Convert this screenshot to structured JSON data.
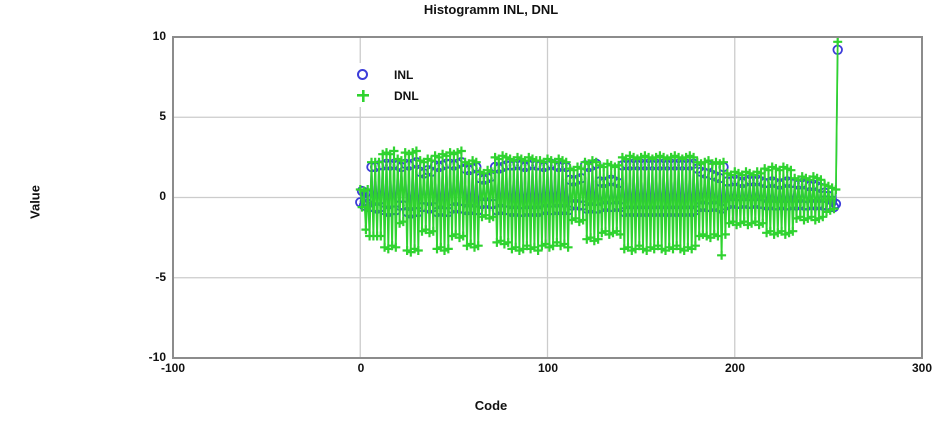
{
  "title": "Histogramm INL, DNL",
  "axes": {
    "x_label": "Code",
    "y_label": "Value"
  },
  "legend": {
    "items": [
      {
        "label": "INL",
        "marker_icon": "circle",
        "color": "#3c3cd9"
      },
      {
        "label": "DNL",
        "marker_icon": "plus",
        "color": "#2fd32f"
      }
    ]
  },
  "colors": {
    "inl": "#3c3cd9",
    "dnl": "#2fd32f",
    "grid": "#cccccc",
    "border": "#8c8c8c",
    "text": "#111111",
    "background": "#ffffff"
  },
  "chart_data": {
    "type": "scatter",
    "title": "Histogramm INL, DNL",
    "xlabel": "Code",
    "ylabel": "Value",
    "xlim": [
      -100,
      300
    ],
    "ylim": [
      -10,
      10
    ],
    "x_ticks": [
      "-100",
      "0",
      "100",
      "200",
      "300"
    ],
    "y_ticks": [
      "10",
      "5",
      "0",
      "-5",
      "-10"
    ],
    "grid_x": [
      0,
      100,
      200
    ],
    "grid_y": [
      5,
      0,
      -5
    ],
    "grid": true,
    "legend_position": "top-left-inside",
    "x": [
      0,
      1,
      2,
      3,
      4,
      5,
      6,
      7,
      8,
      9,
      10,
      11,
      12,
      13,
      14,
      15,
      16,
      17,
      18,
      19,
      20,
      21,
      22,
      23,
      24,
      25,
      26,
      27,
      28,
      29,
      30,
      31,
      32,
      33,
      34,
      35,
      36,
      37,
      38,
      39,
      40,
      41,
      42,
      43,
      44,
      45,
      46,
      47,
      48,
      49,
      50,
      51,
      52,
      53,
      54,
      55,
      56,
      57,
      58,
      59,
      60,
      61,
      62,
      63,
      64,
      65,
      66,
      67,
      68,
      69,
      70,
      71,
      72,
      73,
      74,
      75,
      76,
      77,
      78,
      79,
      80,
      81,
      82,
      83,
      84,
      85,
      86,
      87,
      88,
      89,
      90,
      91,
      92,
      93,
      94,
      95,
      96,
      97,
      98,
      99,
      100,
      101,
      102,
      103,
      104,
      105,
      106,
      107,
      108,
      109,
      110,
      111,
      112,
      113,
      114,
      115,
      116,
      117,
      118,
      119,
      120,
      121,
      122,
      123,
      124,
      125,
      126,
      127,
      128,
      129,
      130,
      131,
      132,
      133,
      134,
      135,
      136,
      137,
      138,
      139,
      140,
      141,
      142,
      143,
      144,
      145,
      146,
      147,
      148,
      149,
      150,
      151,
      152,
      153,
      154,
      155,
      156,
      157,
      158,
      159,
      160,
      161,
      162,
      163,
      164,
      165,
      166,
      167,
      168,
      169,
      170,
      171,
      172,
      173,
      174,
      175,
      176,
      177,
      178,
      179,
      180,
      181,
      182,
      183,
      184,
      185,
      186,
      187,
      188,
      189,
      190,
      191,
      192,
      193,
      194,
      195,
      196,
      197,
      198,
      199,
      200,
      201,
      202,
      203,
      204,
      205,
      206,
      207,
      208,
      209,
      210,
      211,
      212,
      213,
      214,
      215,
      216,
      217,
      218,
      219,
      220,
      221,
      222,
      223,
      224,
      225,
      226,
      227,
      228,
      229,
      230,
      231,
      232,
      233,
      234,
      235,
      236,
      237,
      238,
      239,
      240,
      241,
      242,
      243,
      244,
      245,
      246,
      247,
      248,
      249,
      250,
      251,
      252,
      253,
      254,
      255
    ],
    "series": [
      {
        "name": "INL",
        "marker": "circle",
        "color": "#3c3cd9",
        "line": true,
        "values": [
          -0.3,
          0.4,
          -0.5,
          0.3,
          -0.4,
          -0.6,
          1.9,
          -0.6,
          1.9,
          -0.7,
          2.0,
          -0.6,
          2.0,
          -0.8,
          2.1,
          -0.9,
          2.0,
          -0.8,
          2.1,
          -0.8,
          2.0,
          -0.5,
          1.9,
          -0.5,
          2.1,
          -0.9,
          2.0,
          -1.0,
          2.1,
          -0.9,
          2.2,
          -0.9,
          1.6,
          -0.6,
          1.5,
          -0.6,
          1.7,
          -0.7,
          1.6,
          -0.6,
          2.0,
          -0.9,
          1.9,
          -0.8,
          2.0,
          -0.9,
          2.1,
          -0.9,
          2.1,
          -0.7,
          2.0,
          -0.6,
          2.1,
          -0.7,
          2.2,
          -0.7,
          1.8,
          -0.8,
          1.7,
          -0.7,
          1.8,
          -0.8,
          1.9,
          -0.8,
          1.2,
          -0.4,
          1.1,
          -0.3,
          1.2,
          -0.4,
          1.3,
          -0.4,
          1.9,
          -0.8,
          1.8,
          -0.7,
          1.9,
          -0.8,
          2.0,
          -0.8,
          2.0,
          -0.9,
          2.0,
          -0.8,
          2.1,
          -0.9,
          2.0,
          -0.9,
          1.9,
          -0.8,
          2.0,
          -0.9,
          2.1,
          -0.8,
          2.0,
          -0.9,
          2.0,
          -0.8,
          1.9,
          -0.7,
          2.0,
          -0.8,
          2.1,
          -0.8,
          2.0,
          -0.7,
          1.9,
          -0.8,
          2.0,
          -0.7,
          1.9,
          -0.8,
          1.1,
          -0.5,
          1.0,
          -0.4,
          1.1,
          -0.5,
          1.2,
          -0.5,
          2.0,
          -0.7,
          1.9,
          -0.6,
          2.0,
          -0.7,
          2.1,
          -0.7,
          1.0,
          -0.6,
          0.9,
          -0.5,
          1.0,
          -0.6,
          1.1,
          -0.6,
          1.0,
          -0.5,
          0.9,
          -0.6,
          2.0,
          -0.9,
          2.1,
          -0.8,
          2.0,
          -0.9,
          2.1,
          -0.8,
          2.0,
          -0.9,
          2.1,
          -0.8,
          2.0,
          -0.9,
          2.1,
          -0.8,
          2.0,
          -0.9,
          2.1,
          -0.8,
          2.0,
          -0.9,
          2.1,
          -0.8,
          2.0,
          -0.9,
          2.1,
          -0.8,
          2.0,
          -0.9,
          2.1,
          -0.8,
          2.0,
          -0.9,
          2.1,
          -0.8,
          2.0,
          -0.9,
          2.1,
          -0.8,
          1.8,
          -0.6,
          1.6,
          -0.5,
          1.5,
          -0.6,
          2.0,
          -0.6,
          1.4,
          -0.5,
          1.3,
          -0.6,
          1.2,
          -0.7,
          1.9,
          -0.5,
          1.0,
          -0.4,
          1.0,
          -0.3,
          1.1,
          -0.4,
          1.0,
          -0.4,
          0.9,
          -0.3,
          1.0,
          -0.4,
          1.1,
          -0.4,
          1.0,
          -0.3,
          1.1,
          -0.4,
          1.0,
          -0.4,
          0.9,
          -0.5,
          0.9,
          -0.4,
          1.0,
          -0.5,
          0.9,
          -0.5,
          0.8,
          -0.4,
          0.9,
          -0.5,
          1.0,
          -0.5,
          0.9,
          -0.4,
          0.9,
          -0.5,
          0.8,
          -0.4,
          0.9,
          -0.5,
          0.8,
          -0.5,
          0.7,
          -0.4,
          0.8,
          -0.5,
          0.7,
          -0.4,
          0.6,
          -0.5,
          0.3,
          -0.5,
          0.1,
          -0.6,
          -0.2,
          -0.6,
          -0.4,
          9.2
        ]
      },
      {
        "name": "DNL",
        "marker": "plus",
        "color": "#2fd32f",
        "line": true,
        "values": [
          0.5,
          -0.6,
          0.4,
          -2.0,
          0.5,
          -2.4,
          2.2,
          -2.4,
          2.2,
          -2.4,
          2.2,
          -2.4,
          2.7,
          -3.1,
          2.8,
          -3.2,
          2.7,
          -3.0,
          2.9,
          -3.1,
          2.4,
          -1.6,
          2.3,
          -1.5,
          2.8,
          -3.3,
          2.7,
          -3.4,
          2.8,
          -3.2,
          2.9,
          -3.3,
          2.3,
          -2.1,
          2.2,
          -2.0,
          2.4,
          -2.2,
          2.3,
          -2.1,
          2.6,
          -3.2,
          2.5,
          -3.1,
          2.7,
          -3.3,
          2.6,
          -3.2,
          2.8,
          -2.4,
          2.7,
          -2.3,
          2.8,
          -2.5,
          2.9,
          -2.4,
          2.2,
          -3.0,
          2.1,
          -2.9,
          2.3,
          -3.1,
          2.2,
          -3.0,
          1.6,
          -1.2,
          1.5,
          -1.1,
          1.7,
          -1.3,
          1.6,
          -1.2,
          2.5,
          -2.8,
          2.4,
          -2.7,
          2.6,
          -2.9,
          2.5,
          -2.8,
          2.4,
          -3.2,
          2.3,
          -3.1,
          2.5,
          -3.3,
          2.4,
          -3.2,
          2.3,
          -3.0,
          2.5,
          -3.2,
          2.4,
          -3.1,
          2.3,
          -3.3,
          2.3,
          -3.0,
          2.2,
          -2.9,
          2.4,
          -3.1,
          2.3,
          -3.0,
          2.2,
          -2.8,
          2.4,
          -3.0,
          2.3,
          -2.9,
          2.2,
          -3.1,
          1.8,
          -1.4,
          1.7,
          -1.3,
          1.9,
          -1.5,
          1.8,
          -1.4,
          2.2,
          -2.6,
          2.1,
          -2.5,
          2.3,
          -2.7,
          2.2,
          -2.6,
          2.0,
          -2.2,
          1.9,
          -2.1,
          2.1,
          -2.3,
          2.0,
          -2.2,
          1.9,
          -2.1,
          2.0,
          -2.3,
          2.5,
          -3.2,
          2.4,
          -3.1,
          2.6,
          -3.3,
          2.5,
          -3.2,
          2.4,
          -3.0,
          2.5,
          -3.2,
          2.6,
          -3.3,
          2.5,
          -3.1,
          2.4,
          -3.2,
          2.5,
          -3.0,
          2.6,
          -3.2,
          2.5,
          -3.3,
          2.4,
          -3.1,
          2.5,
          -3.2,
          2.6,
          -3.0,
          2.5,
          -3.2,
          2.4,
          -3.3,
          2.5,
          -3.1,
          2.6,
          -3.2,
          2.5,
          -3.0,
          2.2,
          -2.4,
          2.1,
          -2.3,
          2.2,
          -2.4,
          2.3,
          -2.5,
          2.1,
          -2.3,
          2.2,
          -2.4,
          2.1,
          -3.6,
          2.2,
          -2.3,
          1.5,
          -1.6,
          1.4,
          -1.5,
          1.6,
          -1.7,
          1.5,
          -1.6,
          1.4,
          -1.5,
          1.6,
          -1.7,
          1.5,
          -1.6,
          1.4,
          -1.5,
          1.6,
          -1.7,
          1.5,
          -1.6,
          1.8,
          -2.2,
          1.7,
          -2.1,
          1.9,
          -2.3,
          1.8,
          -2.2,
          1.7,
          -2.1,
          1.9,
          -2.3,
          1.8,
          -2.2,
          1.7,
          -2.1,
          1.2,
          -1.3,
          1.1,
          -1.2,
          1.3,
          -1.4,
          1.2,
          -1.3,
          1.1,
          -1.2,
          1.3,
          -1.4,
          1.2,
          -1.3,
          1.1,
          -1.2,
          0.8,
          -0.9,
          0.7,
          -0.8,
          0.6,
          -0.7,
          0.5,
          9.7
        ]
      }
    ]
  }
}
